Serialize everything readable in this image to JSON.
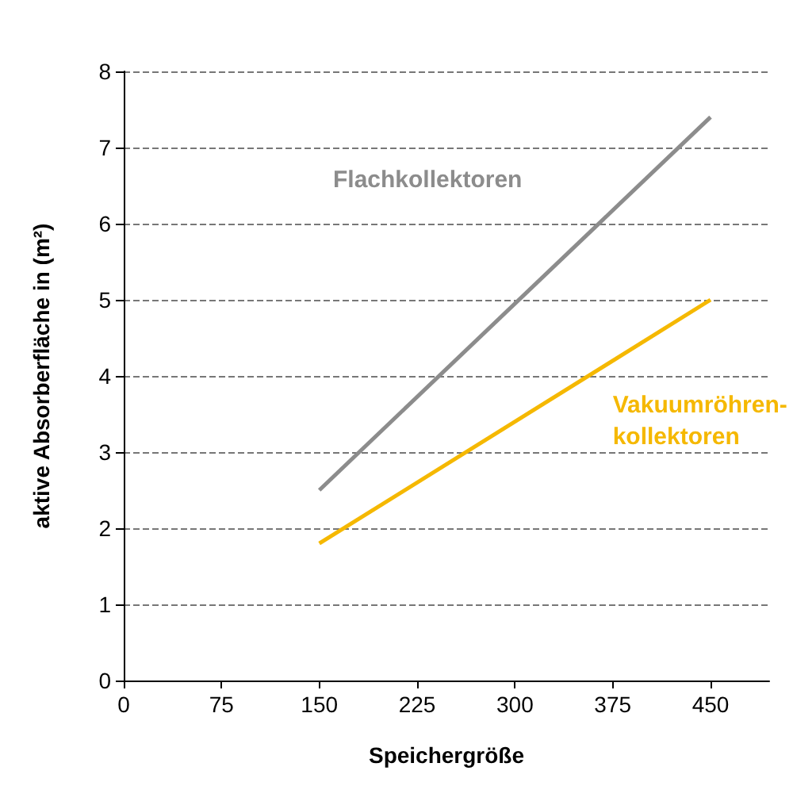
{
  "chart_data": {
    "type": "line",
    "xlabel": "Speichergröße",
    "ylabel": "aktive Absorberfläche in (m²)",
    "x": [
      150,
      450
    ],
    "xlim": [
      0,
      495
    ],
    "xticks": [
      0,
      75,
      150,
      225,
      300,
      375,
      450
    ],
    "ylim": [
      0,
      8
    ],
    "yticks": [
      0,
      1,
      2,
      3,
      4,
      5,
      6,
      7,
      8
    ],
    "grid": "y",
    "legend": false,
    "marker": "none",
    "line_style": "solid",
    "series": [
      {
        "name": "Flachkollektoren",
        "color": "#8c8c8c",
        "values": [
          2.5,
          7.4
        ]
      },
      {
        "name": "Vakuumröhren-kollektoren",
        "color": "#f5b800",
        "values": [
          1.8,
          5.0
        ]
      }
    ]
  }
}
